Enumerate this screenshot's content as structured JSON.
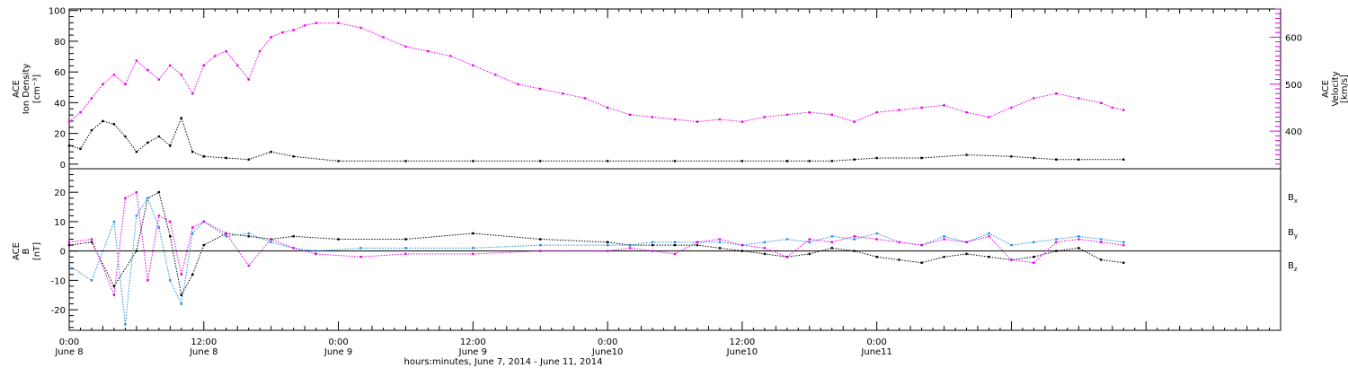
{
  "chart_data": [
    {
      "type": "scatter",
      "panel": "top",
      "ylabel_left": [
        "ACE",
        "Ion Density",
        "[cm⁻³]"
      ],
      "ylabel_right": [
        "ACE",
        "Velocity",
        "[km/s]"
      ],
      "ylim_left": [
        -3,
        101
      ],
      "ylim_right": [
        320,
        660
      ],
      "yticks_left": [
        "0",
        "20",
        "40",
        "60",
        "80",
        "100"
      ],
      "yticks_right": [
        "400",
        "500",
        "600"
      ],
      "series": [
        {
          "axis": "left",
          "color": "#000000",
          "x": [
            0,
            1,
            2,
            3,
            4,
            5,
            6,
            7,
            8,
            9,
            10,
            11,
            12,
            14,
            16,
            18,
            20,
            24,
            30,
            36,
            42,
            48,
            54,
            60,
            64,
            66,
            68,
            70,
            72,
            76,
            80,
            84,
            86,
            88,
            90,
            94
          ],
          "y": [
            12,
            10,
            22,
            28,
            26,
            18,
            8,
            14,
            18,
            12,
            30,
            8,
            5,
            4,
            3,
            8,
            5,
            2,
            2,
            2,
            2,
            2,
            2,
            2,
            2,
            2,
            2,
            3,
            4,
            4,
            6,
            5,
            4,
            3,
            3,
            3
          ]
        },
        {
          "axis": "right",
          "color": "#e600e6",
          "x": [
            0,
            1,
            2,
            3,
            4,
            5,
            6,
            7,
            8,
            9,
            10,
            11,
            12,
            13,
            14,
            15,
            16,
            17,
            18,
            19,
            20,
            21,
            22,
            24,
            26,
            28,
            30,
            32,
            34,
            36,
            38,
            40,
            42,
            44,
            46,
            48,
            50,
            52,
            54,
            56,
            58,
            60,
            62,
            64,
            66,
            68,
            70,
            72,
            74,
            76,
            78,
            80,
            82,
            84,
            86,
            88,
            90,
            92,
            93,
            94
          ],
          "y": [
            420,
            440,
            470,
            500,
            520,
            500,
            550,
            530,
            510,
            540,
            520,
            480,
            540,
            560,
            570,
            540,
            510,
            570,
            600,
            610,
            615,
            625,
            630,
            630,
            620,
            600,
            580,
            570,
            560,
            540,
            520,
            500,
            490,
            480,
            470,
            450,
            435,
            430,
            425,
            420,
            425,
            420,
            430,
            435,
            440,
            435,
            420,
            440,
            445,
            450,
            455,
            440,
            430,
            450,
            470,
            480,
            470,
            460,
            450,
            445
          ]
        }
      ]
    },
    {
      "type": "scatter",
      "panel": "bottom",
      "ylabel": [
        "ACE",
        "B",
        "[nT]"
      ],
      "ylim": [
        -27,
        28
      ],
      "yticks": [
        "-20",
        "-10",
        "0",
        "10",
        "20"
      ],
      "xlim": [
        0,
        108
      ],
      "xticks": [
        {
          "x": 0,
          "label": "0:00",
          "date": "June 8"
        },
        {
          "x": 12,
          "label": "12:00",
          "date": "June 8"
        },
        {
          "x": 24,
          "label": "0:00",
          "date": "June 9"
        },
        {
          "x": 36,
          "label": "12:00",
          "date": "June 9"
        },
        {
          "x": 48,
          "label": "0:00",
          "date": "June10"
        },
        {
          "x": 60,
          "label": "12:00",
          "date": "June10"
        },
        {
          "x": 72,
          "label": "0:00",
          "date": "June11"
        }
      ],
      "xlabel": "hours:minutes, June  7, 2014 - June 11, 2014",
      "series": [
        {
          "name": "B",
          "sub": "x",
          "color": "#000000",
          "x": [
            0,
            2,
            4,
            6,
            7,
            8,
            9,
            10,
            11,
            12,
            14,
            16,
            18,
            20,
            24,
            30,
            36,
            42,
            48,
            50,
            52,
            54,
            56,
            58,
            60,
            62,
            64,
            66,
            68,
            70,
            72,
            74,
            76,
            78,
            80,
            82,
            84,
            86,
            88,
            90,
            92,
            94
          ],
          "y": [
            2,
            3,
            -12,
            0,
            18,
            20,
            5,
            -15,
            -8,
            2,
            6,
            5,
            4,
            5,
            4,
            4,
            6,
            4,
            3,
            2,
            2,
            2,
            2,
            1,
            0,
            -1,
            -2,
            -1,
            1,
            0,
            -2,
            -3,
            -4,
            -2,
            -1,
            -2,
            -3,
            -2,
            0,
            1,
            -3,
            -4
          ]
        },
        {
          "name": "B",
          "sub": "y",
          "color": "#1e8fe0",
          "x": [
            0,
            2,
            4,
            5,
            6,
            7,
            8,
            9,
            10,
            11,
            12,
            14,
            16,
            18,
            20,
            22,
            26,
            30,
            36,
            42,
            48,
            50,
            52,
            54,
            56,
            58,
            60,
            62,
            64,
            66,
            68,
            70,
            72,
            74,
            76,
            78,
            80,
            82,
            84,
            86,
            88,
            90,
            92,
            94
          ],
          "y": [
            -5,
            -10,
            10,
            -25,
            12,
            18,
            8,
            -10,
            -18,
            6,
            10,
            5,
            6,
            3,
            1,
            0,
            1,
            1,
            1,
            2,
            2,
            2,
            3,
            3,
            3,
            3,
            2,
            3,
            4,
            3,
            5,
            4,
            6,
            3,
            2,
            5,
            3,
            6,
            2,
            3,
            4,
            5,
            4,
            3
          ]
        },
        {
          "name": "B",
          "sub": "z",
          "color": "#e600e6",
          "x": [
            0,
            2,
            4,
            5,
            6,
            7,
            8,
            9,
            10,
            11,
            12,
            14,
            16,
            18,
            20,
            22,
            26,
            30,
            36,
            42,
            48,
            50,
            52,
            54,
            56,
            58,
            60,
            62,
            64,
            66,
            68,
            70,
            72,
            74,
            76,
            78,
            80,
            82,
            84,
            86,
            88,
            90,
            92,
            94
          ],
          "y": [
            3,
            4,
            -15,
            18,
            20,
            -10,
            12,
            10,
            -8,
            8,
            10,
            6,
            -5,
            4,
            1,
            -1,
            -2,
            -1,
            -1,
            0,
            0,
            1,
            0,
            -1,
            3,
            4,
            2,
            1,
            -2,
            4,
            3,
            5,
            4,
            3,
            2,
            4,
            3,
            5,
            -3,
            -4,
            3,
            4,
            3,
            2
          ]
        }
      ]
    }
  ]
}
